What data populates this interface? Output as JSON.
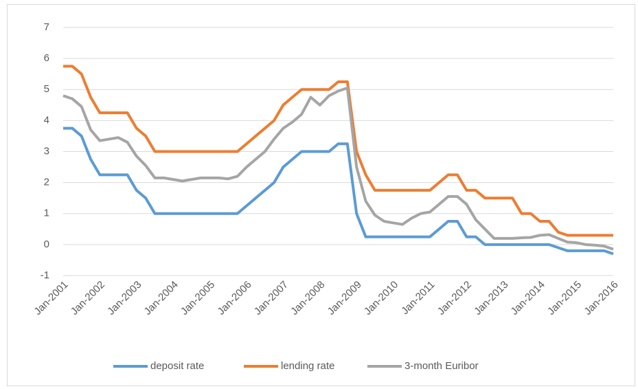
{
  "chart_data": {
    "type": "line",
    "categories": [
      "Jan-2001",
      null,
      null,
      null,
      "Jan-2002",
      null,
      null,
      null,
      "Jan-2003",
      null,
      null,
      null,
      "Jan-2004",
      null,
      null,
      null,
      "Jan-2005",
      null,
      null,
      null,
      "Jan-2006",
      null,
      null,
      null,
      "Jan-2007",
      null,
      null,
      null,
      "Jan-2008",
      null,
      null,
      null,
      "Jan-2009",
      null,
      null,
      null,
      "Jan-2010",
      null,
      null,
      null,
      "Jan-2011",
      null,
      null,
      null,
      "Jan-2012",
      null,
      null,
      null,
      "Jan-2013",
      null,
      null,
      null,
      "Jan-2014",
      null,
      null,
      null,
      "Jan-2015",
      null,
      null,
      null,
      "Jan-2016"
    ],
    "series": [
      {
        "name": "deposit rate",
        "color": "#5b9bd5",
        "values": [
          3.75,
          3.75,
          3.5,
          2.75,
          2.25,
          2.25,
          2.25,
          2.25,
          1.75,
          1.5,
          1.0,
          1.0,
          1,
          1,
          1,
          1,
          1,
          1,
          1,
          1,
          1.25,
          1.5,
          1.75,
          2.0,
          2.5,
          2.75,
          3.0,
          3.0,
          3.0,
          3.0,
          3.25,
          3.25,
          1.0,
          0.25,
          0.25,
          0.25,
          0.25,
          0.25,
          0.25,
          0.25,
          0.25,
          0.5,
          0.75,
          0.75,
          0.25,
          0.25,
          0,
          0,
          0,
          0,
          0,
          0,
          0,
          0,
          -0.1,
          -0.2,
          -0.2,
          -0.2,
          -0.2,
          -0.2,
          -0.3
        ]
      },
      {
        "name": "lending rate",
        "color": "#ed7d31",
        "values": [
          5.75,
          5.75,
          5.5,
          4.75,
          4.25,
          4.25,
          4.25,
          4.25,
          3.75,
          3.5,
          3.0,
          3.0,
          3,
          3,
          3,
          3,
          3,
          3,
          3,
          3,
          3.25,
          3.5,
          3.75,
          4.0,
          4.5,
          4.75,
          5.0,
          5.0,
          5.0,
          5.0,
          5.25,
          5.25,
          3.0,
          2.25,
          1.75,
          1.75,
          1.75,
          1.75,
          1.75,
          1.75,
          1.75,
          2.0,
          2.25,
          2.25,
          1.75,
          1.75,
          1.5,
          1.5,
          1.5,
          1.5,
          1.0,
          1.0,
          0.75,
          0.75,
          0.4,
          0.3,
          0.3,
          0.3,
          0.3,
          0.3,
          0.3
        ]
      },
      {
        "name": "3-month Euribor",
        "color": "#a5a5a5",
        "values": [
          4.8,
          4.7,
          4.45,
          3.7,
          3.35,
          3.4,
          3.45,
          3.3,
          2.85,
          2.55,
          2.15,
          2.15,
          2.1,
          2.05,
          2.1,
          2.15,
          2.15,
          2.15,
          2.12,
          2.2,
          2.5,
          2.75,
          3.0,
          3.4,
          3.75,
          3.95,
          4.2,
          4.75,
          4.5,
          4.8,
          4.95,
          5.05,
          2.5,
          1.4,
          0.95,
          0.75,
          0.7,
          0.65,
          0.85,
          1.0,
          1.05,
          1.3,
          1.55,
          1.55,
          1.3,
          0.8,
          0.5,
          0.2,
          0.2,
          0.2,
          0.22,
          0.23,
          0.3,
          0.32,
          0.2,
          0.08,
          0.06,
          0.0,
          -0.02,
          -0.05,
          -0.15
        ]
      }
    ],
    "ylim": [
      -1,
      7
    ],
    "yticks": [
      -1,
      0,
      1,
      2,
      3,
      4,
      5,
      6,
      7
    ],
    "grid": true,
    "legend": "bottom"
  }
}
